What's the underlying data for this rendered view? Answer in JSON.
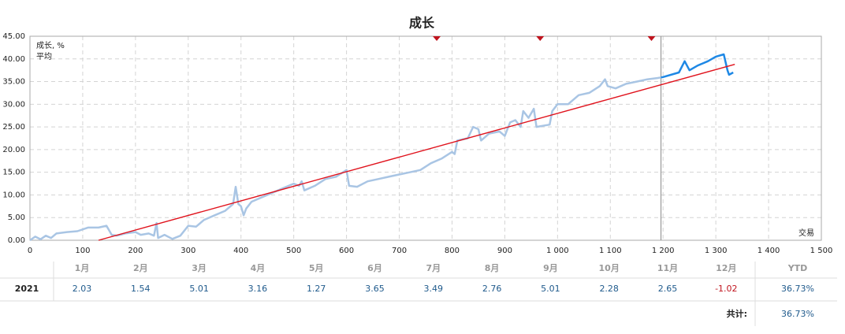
{
  "chart_data": {
    "type": "line",
    "title": "成长",
    "x_label": "交易",
    "xlim": [
      0,
      1500
    ],
    "xticks": [
      0,
      100,
      200,
      300,
      400,
      500,
      600,
      700,
      800,
      900,
      {
        "value": 1000,
        "label": "1 000"
      },
      {
        "value": 1100,
        "label": "1 100"
      },
      {
        "value": 1200,
        "label": "1 200"
      },
      {
        "value": 1300,
        "label": "1 300"
      },
      {
        "value": 1400,
        "label": "1 400"
      },
      {
        "value": 1500,
        "label": "1 500"
      }
    ],
    "ylim": [
      0,
      45
    ],
    "yticks": [
      {
        "value": 0,
        "label": "0.00"
      },
      {
        "value": 5,
        "label": "5.00"
      },
      {
        "value": 10,
        "label": "10.00"
      },
      {
        "value": 15,
        "label": "15.00"
      },
      {
        "value": 20,
        "label": "20.00"
      },
      {
        "value": 25,
        "label": "25.00"
      },
      {
        "value": 30,
        "label": "30.00"
      },
      {
        "value": 35,
        "label": "35.00"
      },
      {
        "value": 40,
        "label": "40.00"
      },
      {
        "value": 45,
        "label": "45.00"
      }
    ],
    "grid": true,
    "legend": "top-left",
    "marker_x": 1196,
    "highlight_color": "#1e88e5",
    "event_markers": [
      771,
      967,
      1178
    ],
    "event_color": "#c0141e",
    "series": [
      {
        "name": "成长, %",
        "color": "#a9c5e4",
        "legend_color": "#1e6fd0",
        "x": [
          0,
          10,
          20,
          30,
          40,
          50,
          70,
          90,
          110,
          130,
          145,
          155,
          165,
          180,
          200,
          210,
          225,
          235,
          240,
          243,
          255,
          270,
          285,
          300,
          315,
          330,
          350,
          370,
          385,
          390,
          395,
          400,
          405,
          410,
          420,
          440,
          460,
          480,
          500,
          510,
          515,
          520,
          540,
          560,
          580,
          600,
          605,
          620,
          640,
          660,
          680,
          700,
          720,
          740,
          760,
          780,
          800,
          805,
          810,
          830,
          840,
          850,
          855,
          870,
          890,
          900,
          910,
          920,
          930,
          935,
          945,
          955,
          960,
          985,
          990,
          1000,
          1020,
          1040,
          1060,
          1080,
          1090,
          1095,
          1110,
          1130,
          1150,
          1170,
          1190,
          1200,
          1230,
          1241,
          1250,
          1265,
          1285,
          1300,
          1315,
          1322,
          1325,
          1333
        ],
        "values": [
          0,
          0.8,
          0.2,
          1.0,
          0.5,
          1.5,
          1.8,
          2.0,
          2.8,
          2.8,
          3.2,
          1.2,
          1.0,
          1.5,
          1.8,
          1.2,
          1.5,
          1.0,
          3.8,
          0.5,
          1.2,
          0.3,
          1.0,
          3.2,
          3.0,
          4.5,
          5.5,
          6.5,
          8.0,
          11.8,
          8.0,
          7.5,
          5.5,
          7.0,
          8.5,
          9.5,
          10.5,
          11.5,
          12.5,
          12.0,
          13.0,
          11.0,
          12.0,
          13.5,
          14.0,
          15.5,
          12.0,
          11.8,
          13.0,
          13.5,
          14.0,
          14.5,
          15.0,
          15.5,
          17.0,
          18.0,
          19.5,
          19.0,
          22.0,
          22.5,
          25.0,
          24.5,
          22.0,
          23.5,
          24.0,
          23.0,
          26.0,
          26.5,
          25.0,
          28.5,
          27.0,
          29.0,
          25.0,
          25.5,
          28.5,
          30.0,
          30.0,
          32.0,
          32.5,
          34.0,
          35.5,
          34.0,
          33.5,
          34.5,
          35.0,
          35.5,
          35.8,
          36.0,
          37.0,
          39.5,
          37.5,
          38.5,
          39.5,
          40.5,
          41.0,
          37.5,
          36.5,
          37.0
        ]
      },
      {
        "name": "平均",
        "color": "#e0121c",
        "x": [
          130,
          1336
        ],
        "values": [
          0,
          38.8
        ]
      }
    ]
  },
  "table": {
    "headers": [
      "1月",
      "2月",
      "3月",
      "4月",
      "5月",
      "6月",
      "7月",
      "8月",
      "9月",
      "10月",
      "11月",
      "12月",
      "YTD"
    ],
    "rows": [
      [
        "2021",
        "2.03",
        "1.54",
        "5.01",
        "3.16",
        "1.27",
        "3.65",
        "3.49",
        "2.76",
        "5.01",
        "2.28",
        "2.65",
        "-1.02",
        "36.73%"
      ]
    ],
    "total_label": "共计:",
    "total": "36.73%"
  }
}
